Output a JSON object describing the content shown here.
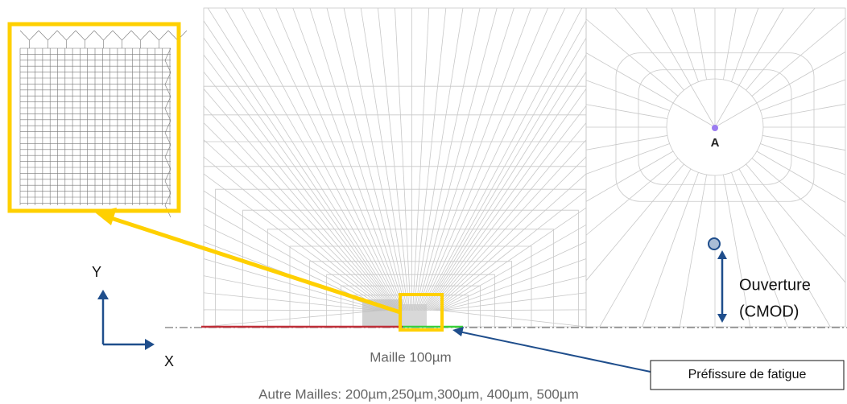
{
  "labels": {
    "point_a": "A",
    "axis_y": "Y",
    "axis_x": "X",
    "opening": "Ouverture",
    "opening_abbr": "(CMOD)",
    "mesh_size": "Maille 100µm",
    "precrack": "Préfissure de fatigue",
    "other_meshes": "Autre Mailles: 200µm,250µm,300µm, 400µm, 500µm"
  }
}
